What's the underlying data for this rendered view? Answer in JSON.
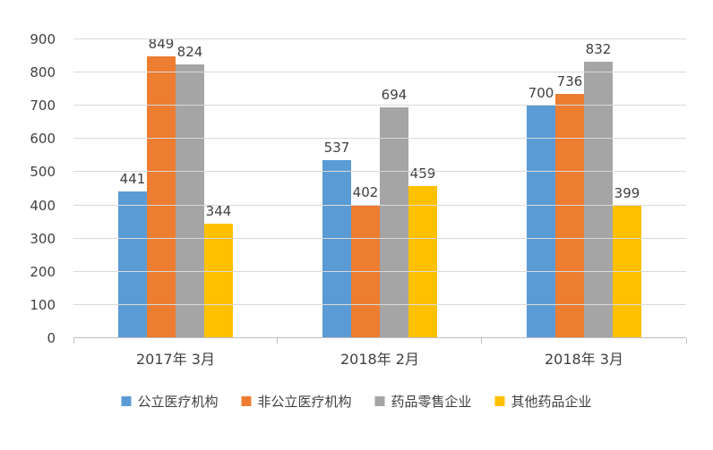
{
  "chart_data": {
    "type": "bar",
    "title": "",
    "categories": [
      "2017年 3月",
      "2018年 2月",
      "2018年 3月"
    ],
    "series": [
      {
        "name": "公立医疗机构",
        "color": "#5B9BD5",
        "values": [
          441,
          537,
          700
        ]
      },
      {
        "name": "非公立医疗机构",
        "color": "#ED7D31",
        "values": [
          849,
          402,
          736
        ]
      },
      {
        "name": "药品零售企业",
        "color": "#A5A5A5",
        "values": [
          824,
          694,
          832
        ]
      },
      {
        "name": "其他药品企业",
        "color": "#FFC000",
        "values": [
          344,
          459,
          399
        ]
      }
    ],
    "xlabel": "",
    "ylabel": "",
    "ylim": [
      0,
      900
    ],
    "yticks": [
      0,
      100,
      200,
      300,
      400,
      500,
      600,
      700,
      800,
      900
    ],
    "grid": true,
    "legend_position": "bottom",
    "colors": {
      "gridline": "#d9d9d9",
      "axis": "#bfbfbf",
      "text": "#404040",
      "background": "#ffffff"
    }
  }
}
